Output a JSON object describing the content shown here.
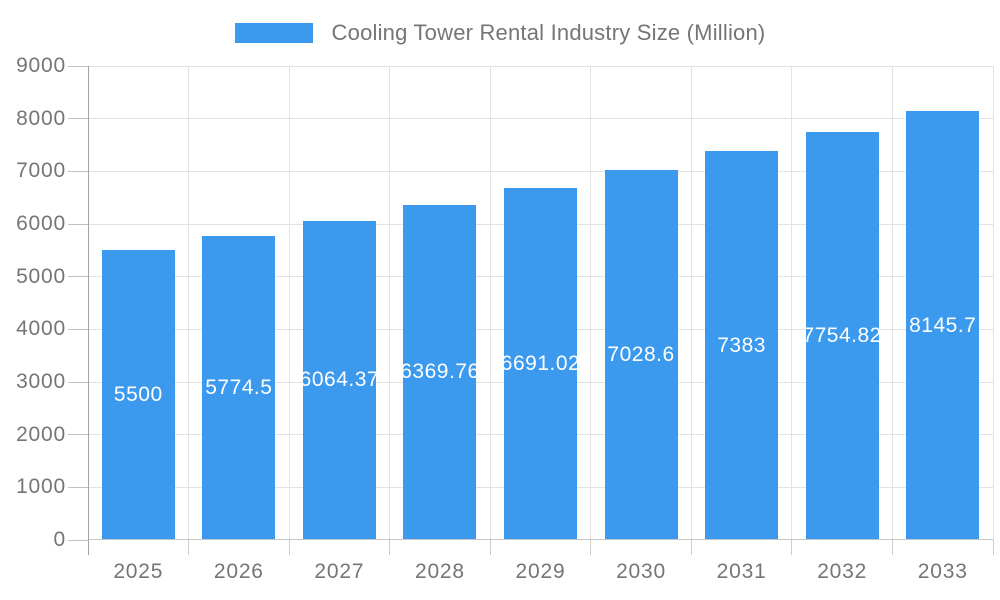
{
  "legend": {
    "label": "Cooling Tower Rental Industry Size (Million)"
  },
  "chart_data": {
    "type": "bar",
    "title": "Cooling Tower Rental Industry Size (Million)",
    "legend_position": "top",
    "grid": true,
    "categories": [
      "2025",
      "2026",
      "2027",
      "2028",
      "2029",
      "2030",
      "2031",
      "2032",
      "2033"
    ],
    "series": [
      {
        "name": "Cooling Tower Rental Industry Size (Million)",
        "values": [
          5500,
          5774.5,
          6064.37,
          6369.76,
          6691.02,
          7028.6,
          7383,
          7754.82,
          8145.7
        ],
        "labels": [
          "5500",
          "5774.5",
          "6064.37",
          "6369.76",
          "6691.02",
          "7028.6",
          "7383",
          "7754.82",
          "8145.7"
        ]
      }
    ],
    "xlabel": "",
    "ylabel": "",
    "ylim": [
      0,
      9000
    ],
    "ytick_step": 1000,
    "yticks": [
      "0",
      "1000",
      "2000",
      "3000",
      "4000",
      "5000",
      "6000",
      "7000",
      "8000",
      "9000"
    ],
    "colors": {
      "bar": "#3B99EE",
      "bar_label_text": "#ffffff",
      "axis_text": "#757575",
      "grid": "#e3e3e3",
      "y_axis_line": "#a3a3a3",
      "x_axis_line": "#c6c6c6",
      "tick": "#c2c2c2"
    }
  }
}
